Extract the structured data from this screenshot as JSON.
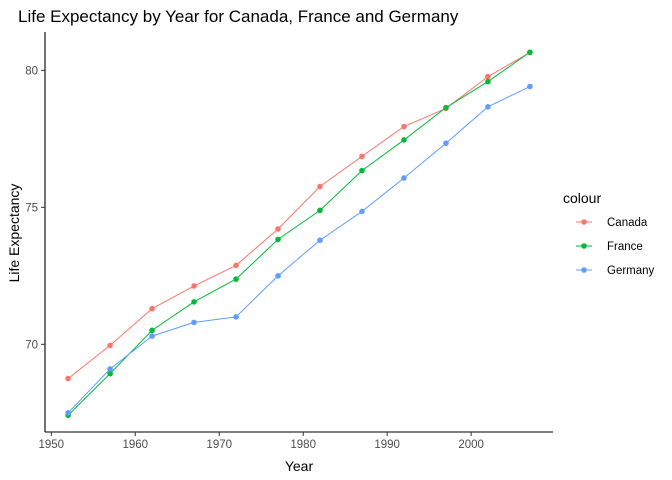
{
  "chart_data": {
    "type": "line",
    "title": "Life Expectancy by Year for Canada, France and Germany",
    "xlabel": "Year",
    "ylabel": "Life Expectancy",
    "xlim": [
      1949.25,
      2009.75
    ],
    "ylim": [
      66.8,
      81.4
    ],
    "x_ticks": [
      1950,
      1960,
      1970,
      1980,
      1990,
      2000
    ],
    "y_ticks": [
      70,
      75,
      80
    ],
    "grid": false,
    "legend_title": "colour",
    "legend_position": "right",
    "x": [
      1952,
      1957,
      1962,
      1967,
      1972,
      1977,
      1982,
      1987,
      1992,
      1997,
      2002,
      2007
    ],
    "series": [
      {
        "name": "Canada",
        "color": "#F8766D",
        "values": [
          68.75,
          69.96,
          71.3,
          72.13,
          72.88,
          74.21,
          75.76,
          76.86,
          77.95,
          78.61,
          79.77,
          80.65
        ]
      },
      {
        "name": "France",
        "color": "#00BA38",
        "values": [
          67.41,
          68.93,
          70.51,
          71.55,
          72.38,
          73.83,
          74.89,
          76.34,
          77.46,
          78.64,
          79.59,
          80.66
        ]
      },
      {
        "name": "Germany",
        "color": "#619CFF",
        "values": [
          67.5,
          69.1,
          70.3,
          70.8,
          71.0,
          72.5,
          73.8,
          74.85,
          76.07,
          77.34,
          78.67,
          79.41
        ]
      }
    ]
  }
}
